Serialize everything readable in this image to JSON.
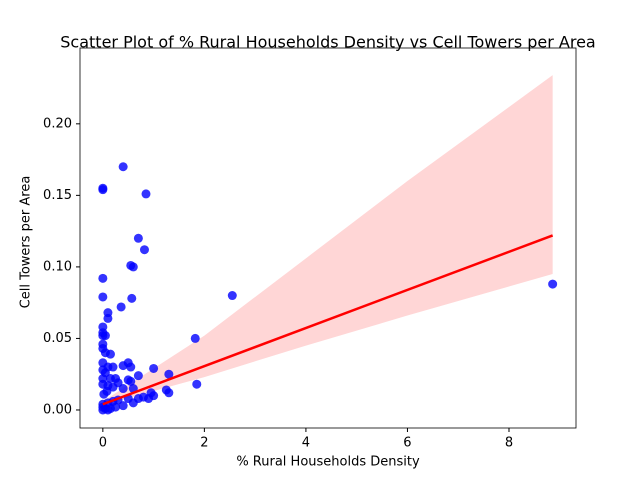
{
  "chart_data": {
    "type": "scatter",
    "title": "Scatter Plot of % Rural Households Density vs Cell Towers per Area",
    "xlabel": "% Rural Households Density",
    "ylabel": "Cell Towers per Area",
    "xlim": [
      -0.45,
      9.32
    ],
    "ylim": [
      -0.0126,
      0.253
    ],
    "xticks": [
      0,
      2,
      4,
      6,
      8
    ],
    "yticks": [
      {
        "value": 0,
        "label": "0.00"
      },
      {
        "value": 0.05,
        "label": "0.05"
      },
      {
        "value": 0.1,
        "label": "0.10"
      },
      {
        "value": 0.15,
        "label": "0.15"
      },
      {
        "value": 0.2,
        "label": "0.20"
      }
    ],
    "series": [
      {
        "color": "#0000ff",
        "x": [
          0.0,
          0.0,
          0.4,
          0.85,
          0.7,
          0.82,
          0.55,
          0.6,
          0.0,
          0.0,
          0.57,
          0.36,
          0.1,
          0.1,
          0.0,
          0.0,
          0.0,
          0.05,
          0.0,
          0.0,
          0.05,
          0.15,
          0.0,
          0.5,
          0.4,
          0.55,
          0.1,
          0.2,
          1.0,
          0.0,
          0.05,
          0.7,
          1.3,
          0.0,
          0.15,
          0.25,
          0.5,
          0.55,
          0.3,
          0.0,
          0.1,
          0.2,
          0.4,
          0.6,
          1.25,
          1.3,
          0.95,
          1.0,
          0.8,
          0.7,
          0.5,
          0.3,
          0.2,
          0.1,
          0.0,
          0.0,
          0.05,
          0.15,
          0.25,
          0.4,
          0.6,
          0.02,
          0.08,
          0.0,
          0.1,
          1.82,
          2.55,
          1.85,
          8.86,
          0.9
        ],
        "values": [
          0.155,
          0.154,
          0.17,
          0.151,
          0.12,
          0.112,
          0.101,
          0.1,
          0.092,
          0.079,
          0.078,
          0.072,
          0.068,
          0.064,
          0.058,
          0.054,
          0.052,
          0.052,
          0.046,
          0.043,
          0.04,
          0.039,
          0.033,
          0.033,
          0.031,
          0.03,
          0.03,
          0.03,
          0.029,
          0.028,
          0.026,
          0.024,
          0.025,
          0.022,
          0.022,
          0.022,
          0.021,
          0.02,
          0.019,
          0.018,
          0.017,
          0.016,
          0.015,
          0.015,
          0.014,
          0.012,
          0.012,
          0.01,
          0.009,
          0.008,
          0.008,
          0.007,
          0.006,
          0.005,
          0.004,
          0.002,
          0.001,
          0.001,
          0.002,
          0.003,
          0.005,
          0.011,
          0.013,
          0.0,
          0.0,
          0.05,
          0.08,
          0.018,
          0.088,
          0.008
        ]
      }
    ],
    "regression": {
      "color": "#ff0000",
      "x": [
        0,
        8.86
      ],
      "values": [
        0.004,
        0.122
      ]
    },
    "band": {
      "color": "#ffd6d6",
      "x": [
        0,
        2,
        4,
        6,
        8.86
      ],
      "upper": [
        0.006,
        0.052,
        0.106,
        0.16,
        0.234
      ],
      "lower": [
        0.0035,
        0.023,
        0.045,
        0.066,
        0.095
      ]
    }
  }
}
